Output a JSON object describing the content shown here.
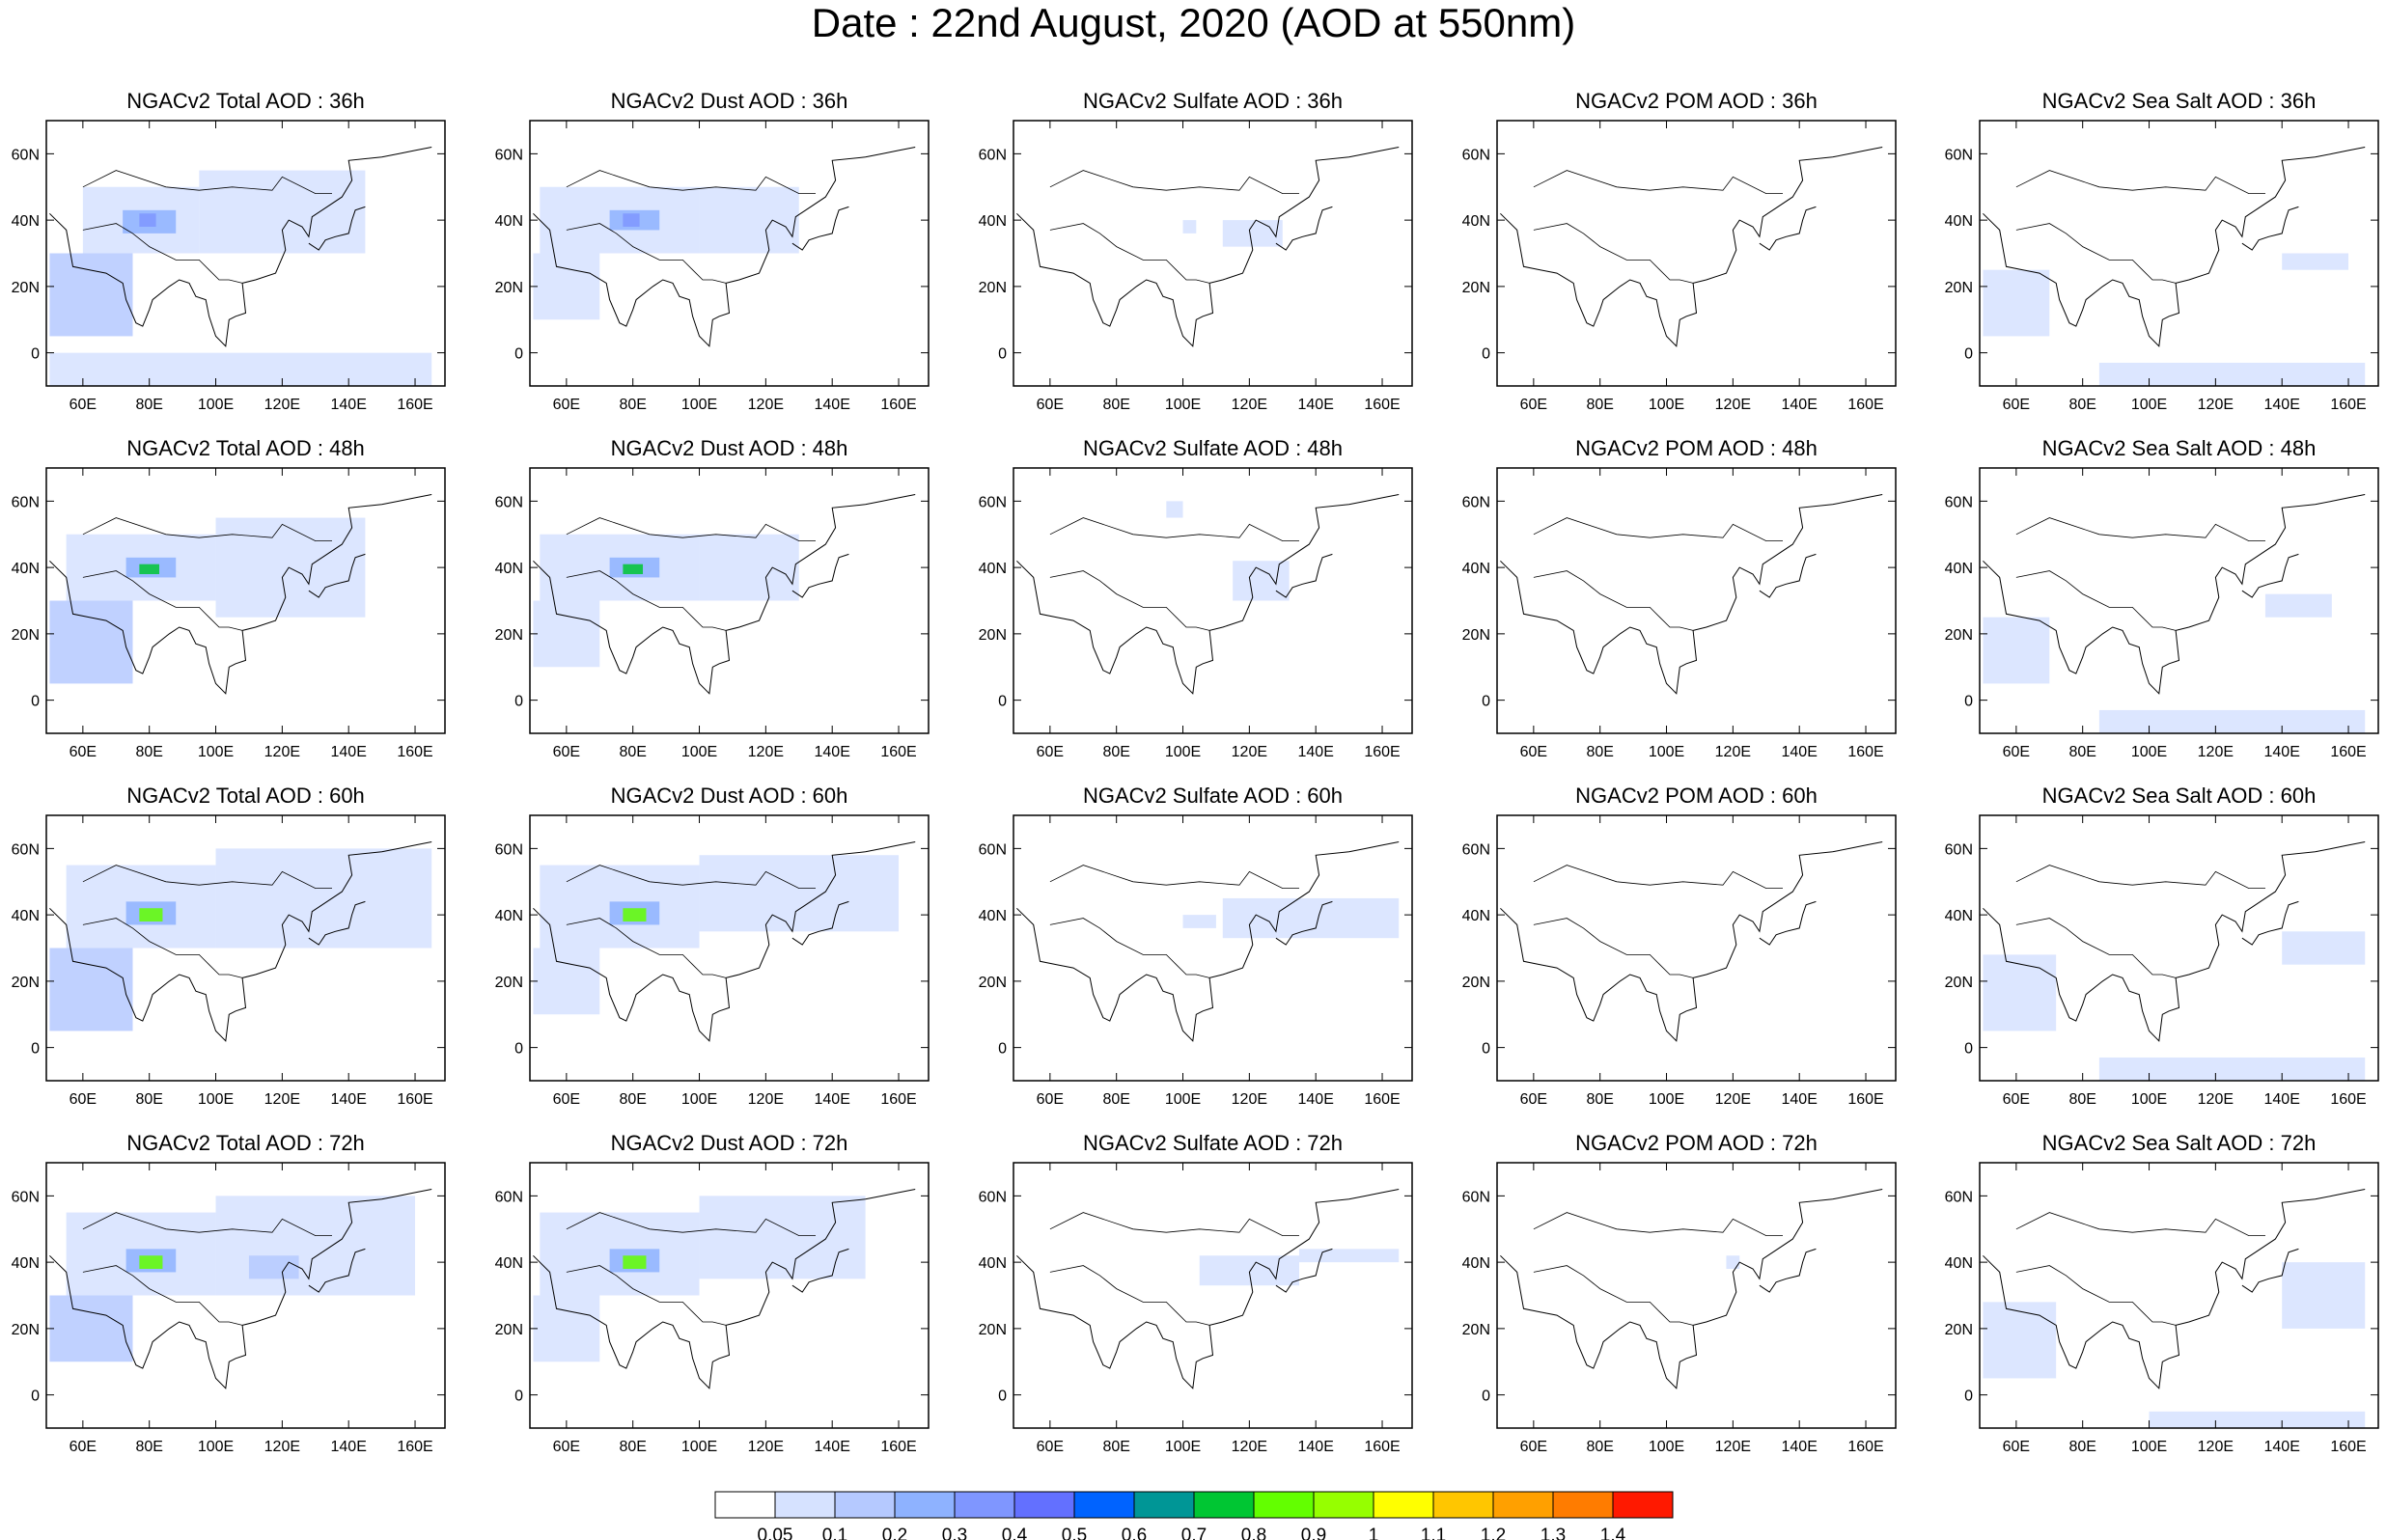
{
  "title": "Date : 22nd August, 2020 (AOD at 550nm)",
  "panel_titles": [
    [
      "NGACv2 Total AOD : 36h",
      "NGACv2 Dust AOD : 36h",
      "NGACv2 Sulfate AOD : 36h",
      "NGACv2 POM AOD : 36h",
      "NGACv2 Sea Salt AOD : 36h"
    ],
    [
      "NGACv2 Total AOD : 48h",
      "NGACv2 Dust AOD : 48h",
      "NGACv2 Sulfate AOD : 48h",
      "NGACv2 POM AOD : 48h",
      "NGACv2 Sea Salt AOD : 48h"
    ],
    [
      "NGACv2 Total AOD : 60h",
      "NGACv2 Dust AOD : 60h",
      "NGACv2 Sulfate AOD : 60h",
      "NGACv2 POM AOD : 60h",
      "NGACv2 Sea Salt AOD : 60h"
    ],
    [
      "NGACv2 Total AOD : 72h",
      "NGACv2 Dust AOD : 72h",
      "NGACv2 Sulfate AOD : 72h",
      "NGACv2 POM AOD : 72h",
      "NGACv2 Sea Salt  AOD : 72h"
    ]
  ],
  "map_extent": {
    "lon": [
      49,
      169
    ],
    "lat": [
      -10,
      70
    ]
  },
  "x_ticks": [
    "60E",
    "80E",
    "100E",
    "120E",
    "140E",
    "160E"
  ],
  "x_tick_values": [
    60,
    80,
    100,
    120,
    140,
    160
  ],
  "y_ticks": [
    "60N",
    "40N",
    "20N",
    "0"
  ],
  "y_tick_values": [
    60,
    40,
    20,
    0
  ],
  "colorbar": {
    "labels": [
      "0.05",
      "0.1",
      "0.2",
      "0.3",
      "0.4",
      "0.5",
      "0.6",
      "0.7",
      "0.8",
      "0.9",
      "1",
      "1.1",
      "1.2",
      "1.3",
      "1.4"
    ],
    "colors": [
      "#ffffff",
      "#d6e2ff",
      "#b5c9ff",
      "#8eb2ff",
      "#7f96ff",
      "#6370ff",
      "#0063ff",
      "#009696",
      "#00c633",
      "#63ff00",
      "#96ff00",
      "#ffff00",
      "#ffc600",
      "#ffa000",
      "#ff7c00",
      "#ff1900"
    ]
  },
  "aod_fields": {
    "total": [
      [
        {
          "lon": [
            60,
            95
          ],
          "lat": [
            30,
            50
          ],
          "level": 1
        },
        {
          "lon": [
            95,
            145
          ],
          "lat": [
            30,
            55
          ],
          "level": 1
        },
        {
          "lon": [
            50,
            75
          ],
          "lat": [
            5,
            30
          ],
          "level": 2
        },
        {
          "lon": [
            72,
            88
          ],
          "lat": [
            36,
            43
          ],
          "level": 3
        },
        {
          "lon": [
            77,
            82
          ],
          "lat": [
            38,
            42
          ],
          "level": 4
        },
        {
          "lon": [
            50,
            165
          ],
          "lat": [
            -10,
            0
          ],
          "level": 1
        }
      ],
      [
        {
          "lon": [
            55,
            100
          ],
          "lat": [
            30,
            50
          ],
          "level": 1
        },
        {
          "lon": [
            100,
            145
          ],
          "lat": [
            25,
            55
          ],
          "level": 1
        },
        {
          "lon": [
            50,
            75
          ],
          "lat": [
            5,
            30
          ],
          "level": 2
        },
        {
          "lon": [
            73,
            88
          ],
          "lat": [
            37,
            43
          ],
          "level": 3
        },
        {
          "lon": [
            77,
            83
          ],
          "lat": [
            38,
            41
          ],
          "level": 8
        }
      ],
      [
        {
          "lon": [
            55,
            100
          ],
          "lat": [
            30,
            55
          ],
          "level": 1
        },
        {
          "lon": [
            100,
            165
          ],
          "lat": [
            30,
            60
          ],
          "level": 1
        },
        {
          "lon": [
            50,
            75
          ],
          "lat": [
            5,
            30
          ],
          "level": 2
        },
        {
          "lon": [
            73,
            88
          ],
          "lat": [
            37,
            44
          ],
          "level": 3
        },
        {
          "lon": [
            77,
            84
          ],
          "lat": [
            38,
            42
          ],
          "level": 9
        }
      ],
      [
        {
          "lon": [
            55,
            100
          ],
          "lat": [
            30,
            55
          ],
          "level": 1
        },
        {
          "lon": [
            100,
            160
          ],
          "lat": [
            30,
            60
          ],
          "level": 1
        },
        {
          "lon": [
            50,
            75
          ],
          "lat": [
            10,
            30
          ],
          "level": 2
        },
        {
          "lon": [
            110,
            125
          ],
          "lat": [
            35,
            42
          ],
          "level": 2
        },
        {
          "lon": [
            73,
            88
          ],
          "lat": [
            37,
            44
          ],
          "level": 3
        },
        {
          "lon": [
            77,
            84
          ],
          "lat": [
            38,
            42
          ],
          "level": 9
        }
      ]
    ],
    "dust": [
      [
        {
          "lon": [
            52,
            100
          ],
          "lat": [
            30,
            50
          ],
          "level": 1
        },
        {
          "lon": [
            100,
            130
          ],
          "lat": [
            30,
            50
          ],
          "level": 1
        },
        {
          "lon": [
            50,
            70
          ],
          "lat": [
            10,
            30
          ],
          "level": 1
        },
        {
          "lon": [
            73,
            88
          ],
          "lat": [
            37,
            43
          ],
          "level": 3
        },
        {
          "lon": [
            77,
            82
          ],
          "lat": [
            38,
            42
          ],
          "level": 4
        }
      ],
      [
        {
          "lon": [
            52,
            100
          ],
          "lat": [
            30,
            50
          ],
          "level": 1
        },
        {
          "lon": [
            100,
            130
          ],
          "lat": [
            30,
            50
          ],
          "level": 1
        },
        {
          "lon": [
            50,
            70
          ],
          "lat": [
            10,
            30
          ],
          "level": 1
        },
        {
          "lon": [
            73,
            88
          ],
          "lat": [
            37,
            43
          ],
          "level": 3
        },
        {
          "lon": [
            77,
            83
          ],
          "lat": [
            38,
            41
          ],
          "level": 8
        }
      ],
      [
        {
          "lon": [
            52,
            100
          ],
          "lat": [
            30,
            55
          ],
          "level": 1
        },
        {
          "lon": [
            100,
            160
          ],
          "lat": [
            35,
            58
          ],
          "level": 1
        },
        {
          "lon": [
            50,
            70
          ],
          "lat": [
            10,
            30
          ],
          "level": 1
        },
        {
          "lon": [
            73,
            88
          ],
          "lat": [
            37,
            44
          ],
          "level": 3
        },
        {
          "lon": [
            77,
            84
          ],
          "lat": [
            38,
            42
          ],
          "level": 9
        }
      ],
      [
        {
          "lon": [
            52,
            100
          ],
          "lat": [
            30,
            55
          ],
          "level": 1
        },
        {
          "lon": [
            100,
            150
          ],
          "lat": [
            35,
            60
          ],
          "level": 1
        },
        {
          "lon": [
            50,
            70
          ],
          "lat": [
            10,
            30
          ],
          "level": 1
        },
        {
          "lon": [
            73,
            88
          ],
          "lat": [
            37,
            44
          ],
          "level": 3
        },
        {
          "lon": [
            77,
            84
          ],
          "lat": [
            38,
            42
          ],
          "level": 9
        }
      ]
    ],
    "sulfate": [
      [
        {
          "lon": [
            112,
            130
          ],
          "lat": [
            32,
            40
          ],
          "level": 1
        },
        {
          "lon": [
            100,
            104
          ],
          "lat": [
            36,
            40
          ],
          "level": 1
        }
      ],
      [
        {
          "lon": [
            115,
            132
          ],
          "lat": [
            30,
            42
          ],
          "level": 1
        },
        {
          "lon": [
            95,
            100
          ],
          "lat": [
            55,
            60
          ],
          "level": 1
        }
      ],
      [
        {
          "lon": [
            112,
            165
          ],
          "lat": [
            33,
            45
          ],
          "level": 1
        },
        {
          "lon": [
            100,
            110
          ],
          "lat": [
            36,
            40
          ],
          "level": 1
        }
      ],
      [
        {
          "lon": [
            105,
            135
          ],
          "lat": [
            33,
            42
          ],
          "level": 1
        },
        {
          "lon": [
            135,
            165
          ],
          "lat": [
            40,
            44
          ],
          "level": 1
        }
      ]
    ],
    "pom": [
      [],
      [],
      [],
      [
        {
          "lon": [
            118,
            122
          ],
          "lat": [
            38,
            42
          ],
          "level": 1
        }
      ]
    ],
    "seasalt": [
      [
        {
          "lon": [
            50,
            70
          ],
          "lat": [
            5,
            25
          ],
          "level": 1
        },
        {
          "lon": [
            85,
            165
          ],
          "lat": [
            -10,
            -3
          ],
          "level": 1
        },
        {
          "lon": [
            140,
            160
          ],
          "lat": [
            25,
            30
          ],
          "level": 1
        }
      ],
      [
        {
          "lon": [
            50,
            70
          ],
          "lat": [
            5,
            25
          ],
          "level": 1
        },
        {
          "lon": [
            85,
            165
          ],
          "lat": [
            -10,
            -3
          ],
          "level": 1
        },
        {
          "lon": [
            135,
            155
          ],
          "lat": [
            25,
            32
          ],
          "level": 1
        }
      ],
      [
        {
          "lon": [
            50,
            72
          ],
          "lat": [
            5,
            28
          ],
          "level": 1
        },
        {
          "lon": [
            85,
            165
          ],
          "lat": [
            -10,
            -3
          ],
          "level": 1
        },
        {
          "lon": [
            140,
            165
          ],
          "lat": [
            25,
            35
          ],
          "level": 1
        }
      ],
      [
        {
          "lon": [
            50,
            72
          ],
          "lat": [
            5,
            28
          ],
          "level": 1
        },
        {
          "lon": [
            100,
            165
          ],
          "lat": [
            -10,
            -5
          ],
          "level": 1
        },
        {
          "lon": [
            140,
            165
          ],
          "lat": [
            20,
            40
          ],
          "level": 1
        }
      ]
    ]
  }
}
